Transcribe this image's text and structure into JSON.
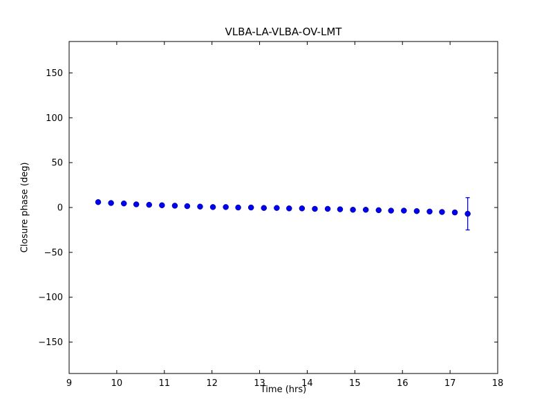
{
  "figure": {
    "title": "VLBA-LA-VLBA-OV-LMT",
    "xlabel": "Time (hrs)",
    "ylabel": "Closure phase (deg)"
  },
  "chart_data": {
    "type": "scatter",
    "title": "VLBA-LA-VLBA-OV-LMT",
    "xlabel": "Time (hrs)",
    "ylabel": "Closure phase (deg)",
    "xlim": [
      9,
      18
    ],
    "ylim": [
      -185,
      185
    ],
    "xticks": [
      9,
      10,
      11,
      12,
      13,
      14,
      15,
      16,
      17,
      18
    ],
    "yticks": [
      -150,
      -100,
      -50,
      0,
      50,
      100,
      150
    ],
    "grid": false,
    "legend": null,
    "frame_color": "#000000",
    "marker": {
      "shape": "circle",
      "color": "#0000ee",
      "size": 4
    },
    "series": [
      {
        "name": "closure-phase",
        "x": [
          9.61,
          9.88,
          10.15,
          10.41,
          10.68,
          10.95,
          11.22,
          11.48,
          11.75,
          12.02,
          12.29,
          12.55,
          12.82,
          13.09,
          13.36,
          13.62,
          13.89,
          14.16,
          14.43,
          14.69,
          14.96,
          15.23,
          15.5,
          15.76,
          16.03,
          16.3,
          16.57,
          16.83,
          17.1,
          17.37
        ],
        "y": [
          6.0,
          5.0,
          4.5,
          3.5,
          3.0,
          2.5,
          2.0,
          1.5,
          1.0,
          0.5,
          0.5,
          0.0,
          0.0,
          -0.5,
          -0.5,
          -1.0,
          -1.0,
          -1.5,
          -1.5,
          -2.0,
          -2.5,
          -2.5,
          -3.0,
          -3.5,
          -3.5,
          -4.0,
          -4.5,
          -5.0,
          -5.5,
          -7.0
        ],
        "yerr": [
          1,
          1,
          1,
          1,
          1,
          1,
          1,
          1,
          1,
          1,
          1,
          1,
          1,
          1,
          1,
          1,
          1,
          1,
          1,
          1,
          1,
          1,
          1,
          1,
          1,
          1,
          1.5,
          1.5,
          2,
          18
        ]
      }
    ]
  }
}
